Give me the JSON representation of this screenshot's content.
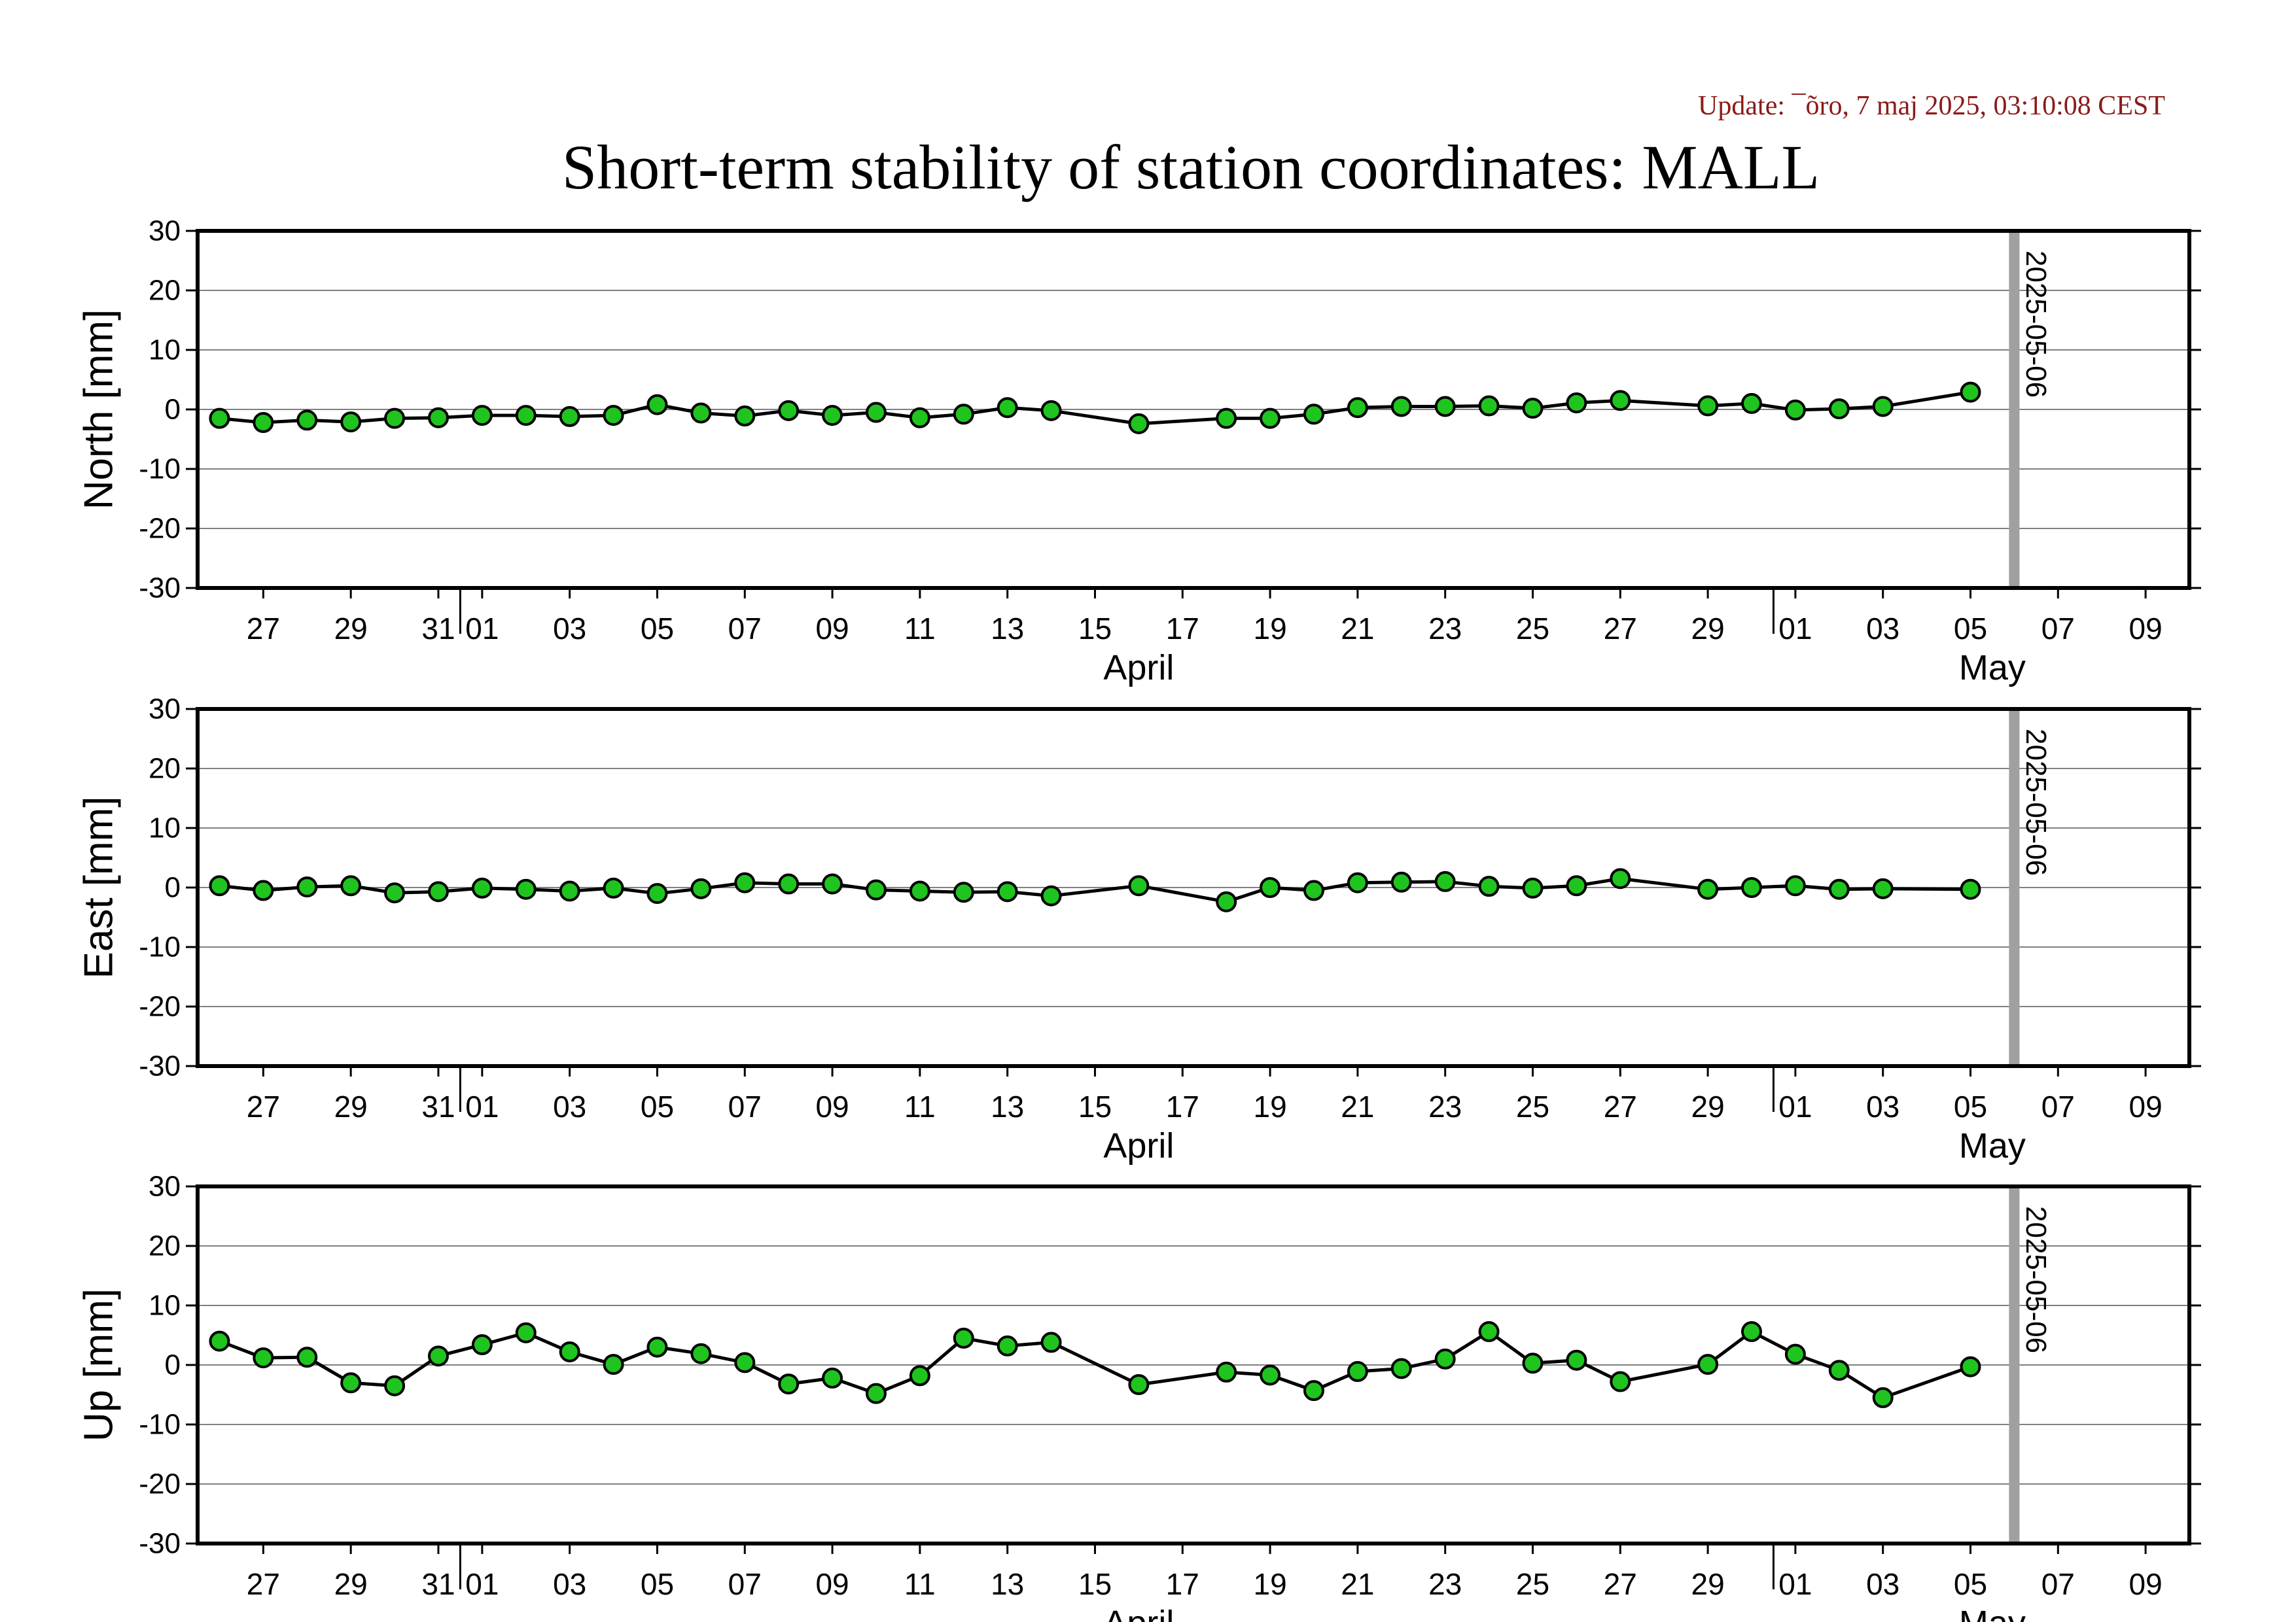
{
  "update_text": "Update: ¯õro, 7 maj 2025, 03:10:08 CEST",
  "title": "Short-term stability of station coordinates: MALL",
  "x_ticks": [
    {
      "day": 1,
      "label": "27"
    },
    {
      "day": 3,
      "label": "29"
    },
    {
      "day": 5,
      "label": "31"
    },
    {
      "day": 6,
      "label": "01"
    },
    {
      "day": 8,
      "label": "03"
    },
    {
      "day": 10,
      "label": "05"
    },
    {
      "day": 12,
      "label": "07"
    },
    {
      "day": 14,
      "label": "09"
    },
    {
      "day": 16,
      "label": "11"
    },
    {
      "day": 18,
      "label": "13"
    },
    {
      "day": 20,
      "label": "15"
    },
    {
      "day": 22,
      "label": "17"
    },
    {
      "day": 24,
      "label": "19"
    },
    {
      "day": 26,
      "label": "21"
    },
    {
      "day": 28,
      "label": "23"
    },
    {
      "day": 30,
      "label": "25"
    },
    {
      "day": 32,
      "label": "27"
    },
    {
      "day": 34,
      "label": "29"
    },
    {
      "day": 36,
      "label": "01"
    },
    {
      "day": 38,
      "label": "03"
    },
    {
      "day": 40,
      "label": "05"
    },
    {
      "day": 42,
      "label": "07"
    },
    {
      "day": 44,
      "label": "09"
    }
  ],
  "month_labels": [
    {
      "day": 21,
      "label": "April"
    },
    {
      "day": 40.5,
      "label": "May"
    }
  ],
  "month_boundaries": [
    5.5,
    35.5
  ],
  "current_date_label": "2025-05-06",
  "current_date_day": 41,
  "colors": {
    "marker_fill": "#1fc41f",
    "line": "#000000",
    "current_date_bar": "#a0a0a0",
    "grid": "#808080"
  },
  "chart_data": [
    {
      "type": "line",
      "ylabel": "North [mm]",
      "ylim": [
        -30,
        30
      ],
      "yticks": [
        -30,
        -20,
        -10,
        0,
        10,
        20,
        30
      ],
      "xlim": [
        "2025-03-25T12:00",
        "2025-05-10"
      ],
      "grid": true,
      "x": [
        "2025-03-26",
        "2025-03-27",
        "2025-03-28",
        "2025-03-29",
        "2025-03-30",
        "2025-03-31",
        "2025-04-01",
        "2025-04-02",
        "2025-04-03",
        "2025-04-04",
        "2025-04-05",
        "2025-04-06",
        "2025-04-07",
        "2025-04-08",
        "2025-04-09",
        "2025-04-10",
        "2025-04-11",
        "2025-04-12",
        "2025-04-13",
        "2025-04-14",
        "2025-04-16",
        "2025-04-18",
        "2025-04-19",
        "2025-04-20",
        "2025-04-21",
        "2025-04-22",
        "2025-04-23",
        "2025-04-24",
        "2025-04-25",
        "2025-04-26",
        "2025-04-27",
        "2025-04-29",
        "2025-04-30",
        "2025-05-01",
        "2025-05-02",
        "2025-05-03",
        "2025-05-05"
      ],
      "values": [
        -1.5,
        -2.2,
        -1.8,
        -2.1,
        -1.5,
        -1.4,
        -1.0,
        -1.0,
        -1.2,
        -1.0,
        0.8,
        -0.6,
        -1.1,
        -0.2,
        -1.0,
        -0.5,
        -1.4,
        -0.8,
        0.3,
        -0.2,
        -2.4,
        -1.5,
        -1.5,
        -0.8,
        0.3,
        0.5,
        0.5,
        0.6,
        0.2,
        1.1,
        1.5,
        0.6,
        1.0,
        -0.1,
        0.1,
        0.5,
        2.9
      ]
    },
    {
      "type": "line",
      "ylabel": "East [mm]",
      "ylim": [
        -30,
        30
      ],
      "yticks": [
        -30,
        -20,
        -10,
        0,
        10,
        20,
        30
      ],
      "xlim": [
        "2025-03-25T12:00",
        "2025-05-10"
      ],
      "grid": true,
      "x": [
        "2025-03-26",
        "2025-03-27",
        "2025-03-28",
        "2025-03-29",
        "2025-03-30",
        "2025-03-31",
        "2025-04-01",
        "2025-04-02",
        "2025-04-03",
        "2025-04-04",
        "2025-04-05",
        "2025-04-06",
        "2025-04-07",
        "2025-04-08",
        "2025-04-09",
        "2025-04-10",
        "2025-04-11",
        "2025-04-12",
        "2025-04-13",
        "2025-04-14",
        "2025-04-16",
        "2025-04-18",
        "2025-04-19",
        "2025-04-20",
        "2025-04-21",
        "2025-04-22",
        "2025-04-23",
        "2025-04-24",
        "2025-04-25",
        "2025-04-26",
        "2025-04-27",
        "2025-04-29",
        "2025-04-30",
        "2025-05-01",
        "2025-05-02",
        "2025-05-03",
        "2025-05-05"
      ],
      "values": [
        0.3,
        -0.5,
        0.1,
        0.3,
        -0.9,
        -0.7,
        -0.1,
        -0.3,
        -0.6,
        -0.1,
        -1.0,
        -0.2,
        0.8,
        0.6,
        0.6,
        -0.4,
        -0.6,
        -0.8,
        -0.7,
        -1.4,
        0.3,
        -2.4,
        0.0,
        -0.5,
        0.8,
        0.9,
        1.0,
        0.2,
        -0.1,
        0.3,
        1.5,
        -0.3,
        0.0,
        0.3,
        -0.3,
        -0.2,
        -0.3
      ]
    },
    {
      "type": "line",
      "ylabel": "Up [mm]",
      "ylim": [
        -30,
        30
      ],
      "yticks": [
        -30,
        -20,
        -10,
        0,
        10,
        20,
        30
      ],
      "xlim": [
        "2025-03-25T12:00",
        "2025-05-10"
      ],
      "grid": true,
      "x": [
        "2025-03-26",
        "2025-03-27",
        "2025-03-28",
        "2025-03-29",
        "2025-03-30",
        "2025-03-31",
        "2025-04-01",
        "2025-04-02",
        "2025-04-03",
        "2025-04-04",
        "2025-04-05",
        "2025-04-06",
        "2025-04-07",
        "2025-04-08",
        "2025-04-09",
        "2025-04-10",
        "2025-04-11",
        "2025-04-12",
        "2025-04-13",
        "2025-04-14",
        "2025-04-16",
        "2025-04-18",
        "2025-04-19",
        "2025-04-20",
        "2025-04-21",
        "2025-04-22",
        "2025-04-23",
        "2025-04-24",
        "2025-04-25",
        "2025-04-26",
        "2025-04-27",
        "2025-04-29",
        "2025-04-30",
        "2025-05-01",
        "2025-05-02",
        "2025-05-03",
        "2025-05-05"
      ],
      "values": [
        4.0,
        1.2,
        1.3,
        -3.0,
        -3.5,
        1.5,
        3.4,
        5.4,
        2.2,
        0.1,
        3.0,
        1.9,
        0.4,
        -3.2,
        -2.2,
        -4.8,
        -1.8,
        4.5,
        3.2,
        3.8,
        -3.3,
        -1.2,
        -1.7,
        -4.3,
        -1.1,
        -0.6,
        1.0,
        5.6,
        0.3,
        0.8,
        -2.8,
        0.1,
        5.6,
        1.8,
        -0.9,
        -5.5,
        -0.3
      ]
    }
  ]
}
